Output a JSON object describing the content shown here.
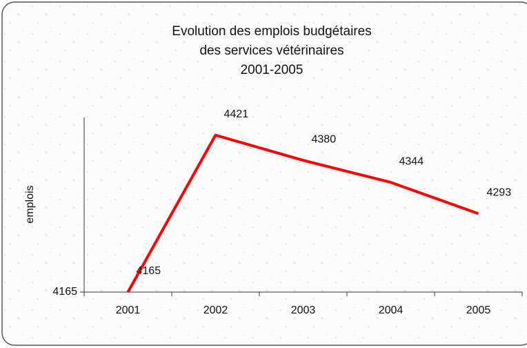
{
  "chart_data": {
    "type": "line",
    "title": [
      "Evolution des emplois budgétaires",
      "des services vétérinaires",
      "2001-2005"
    ],
    "y_label": "emplois",
    "categories": [
      "2001",
      "2002",
      "2003",
      "2004",
      "2005"
    ],
    "series": [
      {
        "name": "emplois",
        "color": "#ff0000",
        "values": [
          4165,
          4421,
          4380,
          4344,
          4293
        ]
      }
    ],
    "ylim": [
      4165,
      4450
    ],
    "yticks": [
      4165
    ],
    "grid": false
  }
}
